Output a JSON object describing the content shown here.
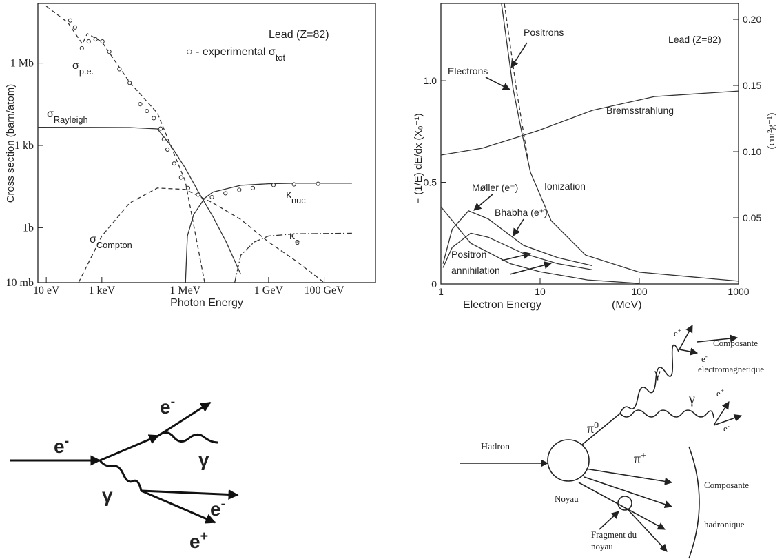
{
  "chart_data": [
    {
      "type": "line",
      "xscale": "log",
      "yscale": "log",
      "xlabel": "Photon Energy",
      "ylabel": "Cross section (barn/atom)",
      "xlim": [
        5,
        7000000000000.0
      ],
      "ylim": [
        0.01,
        150000000.0
      ],
      "xticks": [
        {
          "value": 10,
          "label": "10 eV"
        },
        {
          "value": 1000,
          "label": "1 keV"
        },
        {
          "value": 1000000,
          "label": "1 MeV"
        },
        {
          "value": 1000000000,
          "label": "1 GeV"
        },
        {
          "value": 100000000000,
          "label": "100 GeV"
        }
      ],
      "yticks": [
        {
          "value": 0.01,
          "label": "10 mb"
        },
        {
          "value": 1,
          "label": "1b"
        },
        {
          "value": 1000,
          "label": "1 kb"
        },
        {
          "value": 1000000,
          "label": "1 Mb"
        }
      ],
      "annotations": [
        {
          "text": "Lead (Z=82)"
        },
        {
          "text": "○ - experimental σ",
          "sub": "tot"
        },
        {
          "text": "σ",
          "sub": "p.e."
        },
        {
          "text": "σ",
          "sub": "Rayleigh"
        },
        {
          "text": "σ",
          "sub": "Compton"
        },
        {
          "text": "κ",
          "sub": "nuc"
        },
        {
          "text": "κ",
          "sub": "e"
        }
      ],
      "series": [
        {
          "color": "#333333",
          "dash": "dashed",
          "x": [
            10,
            60,
            200,
            300,
            1000,
            10000,
            100000,
            1000000,
            5000000
          ],
          "values": [
            120000000,
            30000000,
            5000000,
            12000000,
            6000000,
            200000,
            15000,
            50,
            0.01
          ]
        },
        {
          "color": "#333333",
          "dash": "solid",
          "x": [
            5,
            10000,
            100000,
            300000,
            1000000,
            3000000,
            10000000,
            30000000,
            100000000
          ],
          "values": [
            4600,
            4500,
            4000,
            1000,
            150,
            20,
            2.5,
            0.3,
            0.02
          ]
        },
        {
          "color": "#333333",
          "dash": "dashed",
          "x": [
            145,
            1000,
            10000,
            100000,
            1000000,
            10000000,
            100000000,
            1000000000,
            10000000000,
            100000000000
          ],
          "values": [
            0.01,
            0.5,
            8,
            28,
            25,
            8,
            2,
            0.3,
            0.06,
            0.01
          ]
        },
        {
          "color": "#333333",
          "dash": "solid",
          "x": [
            1022000,
            1200000,
            2000000,
            5000000,
            10000000,
            100000000,
            1000000000,
            10000000000,
            1000000000000
          ],
          "values": [
            0.01,
            0.5,
            3,
            12,
            20,
            35,
            40,
            42,
            42
          ]
        },
        {
          "color": "#333333",
          "dash": "dashdot",
          "x": [
            60000000,
            100000000,
            300000000,
            1000000000,
            10000000000,
            1000000000000
          ],
          "values": [
            0.01,
            0.1,
            0.3,
            0.5,
            0.6,
            0.63
          ]
        },
        {
          "color": "#333333",
          "marker": "circle",
          "x": [
            73,
            108,
            191,
            337,
            593,
            1050,
            1850,
            4300,
            10000,
            24000,
            42000,
            74000,
            130000,
            170000,
            230000,
            400000,
            710000,
            1260000,
            2900000,
            9100000,
            28000000,
            88000000,
            270000000,
            1500000000,
            8200000000,
            60000000000
          ],
          "values": [
            36000000,
            20000000,
            3500000,
            6200000,
            7400000,
            6200000,
            2600000,
            600000,
            190000,
            32000,
            18000,
            9900,
            4100,
            1700,
            710,
            220,
            68,
            28,
            16,
            13,
            18,
            24,
            28,
            36,
            38,
            40
          ]
        }
      ]
    },
    {
      "type": "line",
      "xscale": "log",
      "xlabel": "Electron Energy",
      "xunit": "(MeV)",
      "ylabel": "− (1/E) dE/dx  (X₀⁻¹)",
      "y2label": "(cm²g⁻¹)",
      "xlim": [
        1,
        1000
      ],
      "ylim": [
        0,
        1.38
      ],
      "y2lim": [
        0,
        0.212
      ],
      "xticks": [
        1,
        10,
        100,
        1000
      ],
      "yticks": [
        0,
        0.5,
        {
          "value": 1,
          "label": "1.0"
        }
      ],
      "y2ticks": [
        0.05,
        {
          "value": 0.1,
          "label": "0.10"
        },
        0.15,
        {
          "value": 0.2,
          "label": "0.20"
        }
      ],
      "annotations": [
        {
          "text": "Positrons"
        },
        {
          "text": "Electrons"
        },
        {
          "text": "Lead (Z=82)"
        },
        {
          "text": "Bremsstrahlung"
        },
        {
          "text": "Ionization"
        },
        {
          "text": "Møller (e⁻)"
        },
        {
          "text": "Bhabha (e⁺)"
        },
        {
          "text": "Positron"
        },
        {
          "text": "annihilation"
        }
      ],
      "series": [
        {
          "color": "#333333",
          "dash": "solid",
          "x": [
            4.08,
            5.36,
            6.5,
            8,
            12.9,
            28.7,
            100,
            1000
          ],
          "values": [
            1.38,
            0.956,
            0.75,
            0.549,
            0.312,
            0.142,
            0.058,
            0.014
          ]
        },
        {
          "color": "#333333",
          "dash": "dashed",
          "x": [
            4.36,
            5.8,
            7.5
          ],
          "values": [
            1.38,
            0.95,
            0.62
          ]
        },
        {
          "color": "#333333",
          "dash": "solid",
          "x": [
            1,
            2.61,
            9.4,
            33.6,
            142,
            1000
          ],
          "values": [
            0.634,
            0.668,
            0.753,
            0.854,
            0.922,
            0.949
          ]
        },
        {
          "color": "#333333",
          "dash": "solid",
          "x": [
            1.05,
            1.3,
            1.9,
            3,
            6.8,
            15,
            33.6
          ],
          "values": [
            0.1,
            0.27,
            0.36,
            0.32,
            0.19,
            0.13,
            0.09
          ]
        },
        {
          "color": "#333333",
          "dash": "solid",
          "x": [
            1.05,
            1.3,
            2,
            3,
            6.8,
            15,
            33.6
          ],
          "values": [
            0.08,
            0.18,
            0.25,
            0.23,
            0.15,
            0.1,
            0.07
          ]
        },
        {
          "color": "#333333",
          "dash": "solid",
          "x": [
            1,
            2,
            5,
            10,
            30,
            100
          ],
          "values": [
            0.38,
            0.2,
            0.1,
            0.06,
            0.02,
            0.003
          ]
        }
      ]
    }
  ],
  "diagram_left": {
    "labels": [
      {
        "text": "e",
        "sup": "-"
      },
      {
        "text": "e",
        "sup": "-"
      },
      {
        "text": "γ"
      },
      {
        "text": "γ"
      },
      {
        "text": "e",
        "sup": "-"
      },
      {
        "text": "e",
        "sup": "+"
      }
    ]
  },
  "diagram_right": {
    "labels": [
      {
        "text": "Hadron"
      },
      {
        "text": "Noyau"
      },
      {
        "text": "π",
        "sup": "0"
      },
      {
        "text": "γ"
      },
      {
        "text": "γ"
      },
      {
        "text": "e",
        "sup": "+"
      },
      {
        "text": "e",
        "sup": "-"
      },
      {
        "text": "e",
        "sup": "+"
      },
      {
        "text": "e",
        "sup": "-"
      },
      {
        "text": "Composante"
      },
      {
        "text": "electromagnetique"
      },
      {
        "text": "π",
        "sup": "+"
      },
      {
        "text": "Composante"
      },
      {
        "text": "hadronique"
      },
      {
        "text": "Fragment du"
      },
      {
        "text": "noyau"
      }
    ]
  }
}
